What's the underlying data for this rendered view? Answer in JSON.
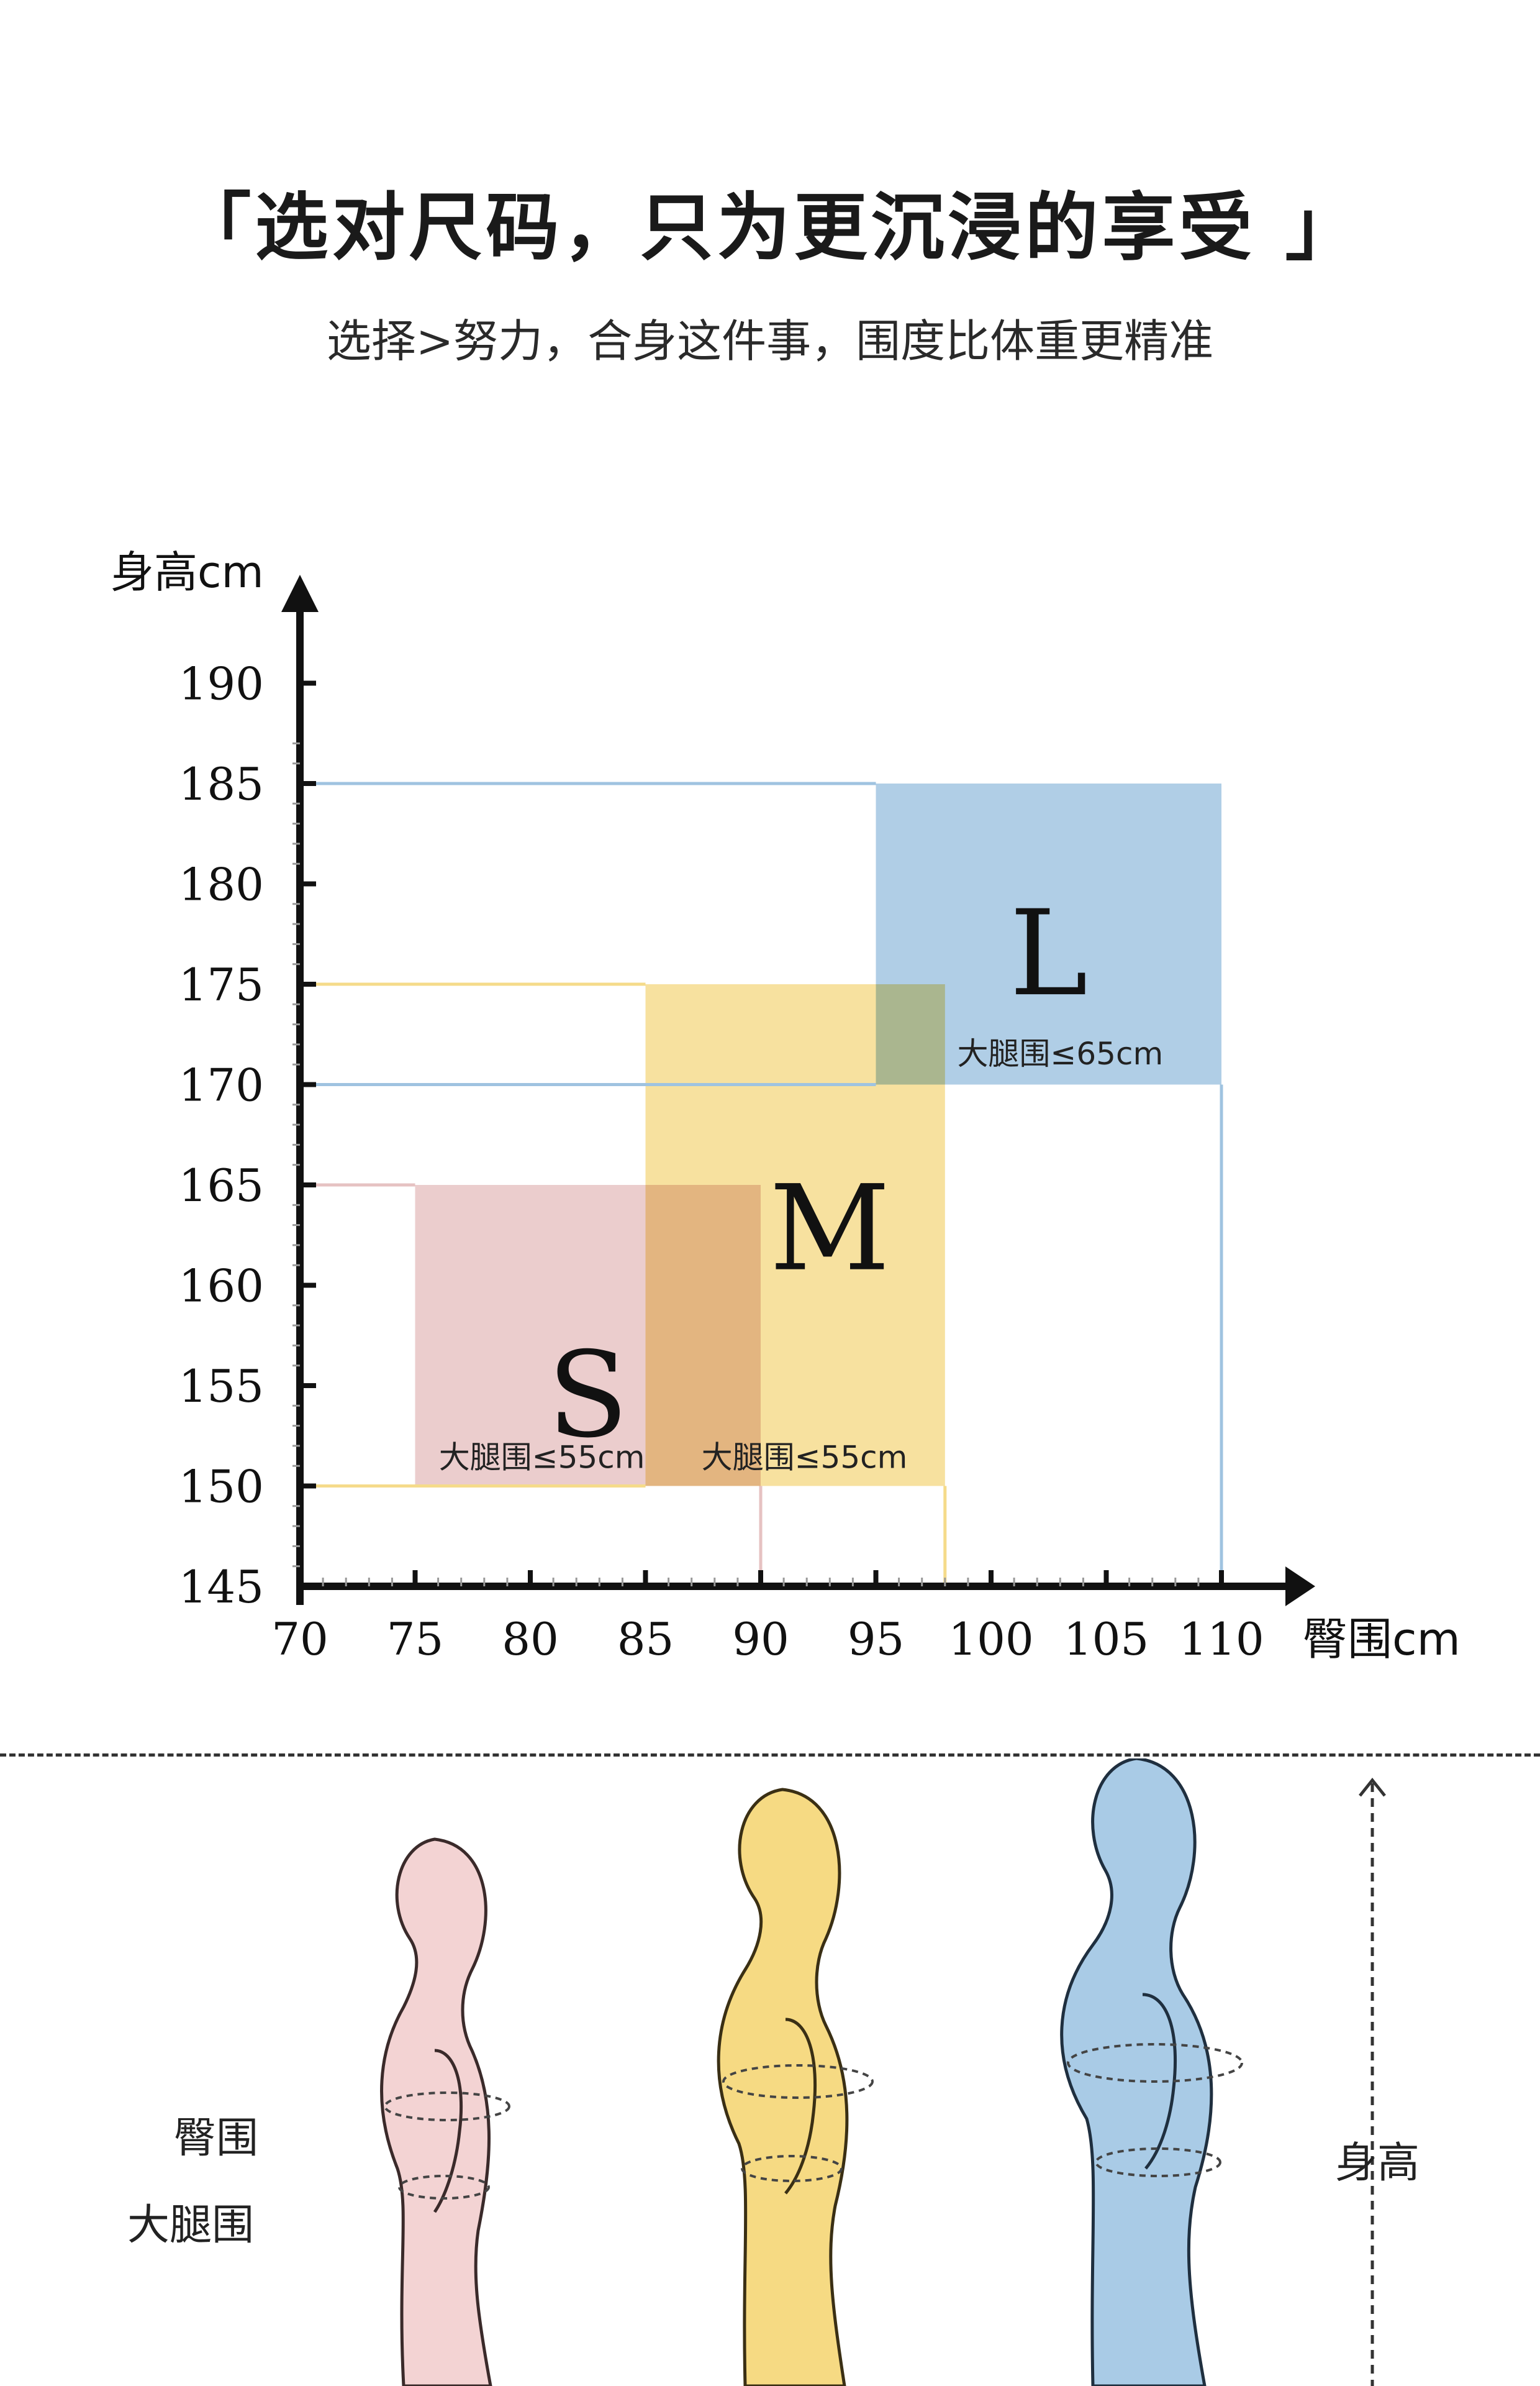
{
  "header": {
    "title": "「选对尺码，只为更沉浸的享受 」",
    "subtitle": "选择>努力，合身这件事，围度比体重更精准"
  },
  "colors": {
    "S": "#e6c2c2",
    "M": "#f5db8a",
    "L": "#9fc3e0",
    "axis": "#111111"
  },
  "chart_data": {
    "type": "area",
    "ylabel": "身高cm",
    "xlabel": "臀围cm",
    "xlim": [
      70,
      110
    ],
    "ylim": [
      145,
      190
    ],
    "x_ticks": [
      "70",
      "75",
      "80",
      "85",
      "90",
      "95",
      "100",
      "105",
      "110"
    ],
    "y_ticks": [
      "145",
      "150",
      "155",
      "160",
      "165",
      "170",
      "175",
      "180",
      "185",
      "190"
    ],
    "grid": false,
    "regions": [
      {
        "name": "S",
        "x": [
          75,
          90
        ],
        "y": [
          150,
          165
        ],
        "note": "大腿围≤55cm"
      },
      {
        "name": "M",
        "x": [
          85,
          98
        ],
        "y": [
          150,
          175
        ],
        "note": "大腿围≤55cm"
      },
      {
        "name": "L",
        "x": [
          95,
          110
        ],
        "y": [
          170,
          185
        ],
        "note": "大腿围≤65cm"
      }
    ]
  },
  "figures": {
    "hip_label": "臀围",
    "thigh_label": "大腿围",
    "height_label": "身高",
    "icons": [
      "mannequin-s-icon",
      "mannequin-m-icon",
      "mannequin-l-icon",
      "height-arrow-icon"
    ]
  }
}
